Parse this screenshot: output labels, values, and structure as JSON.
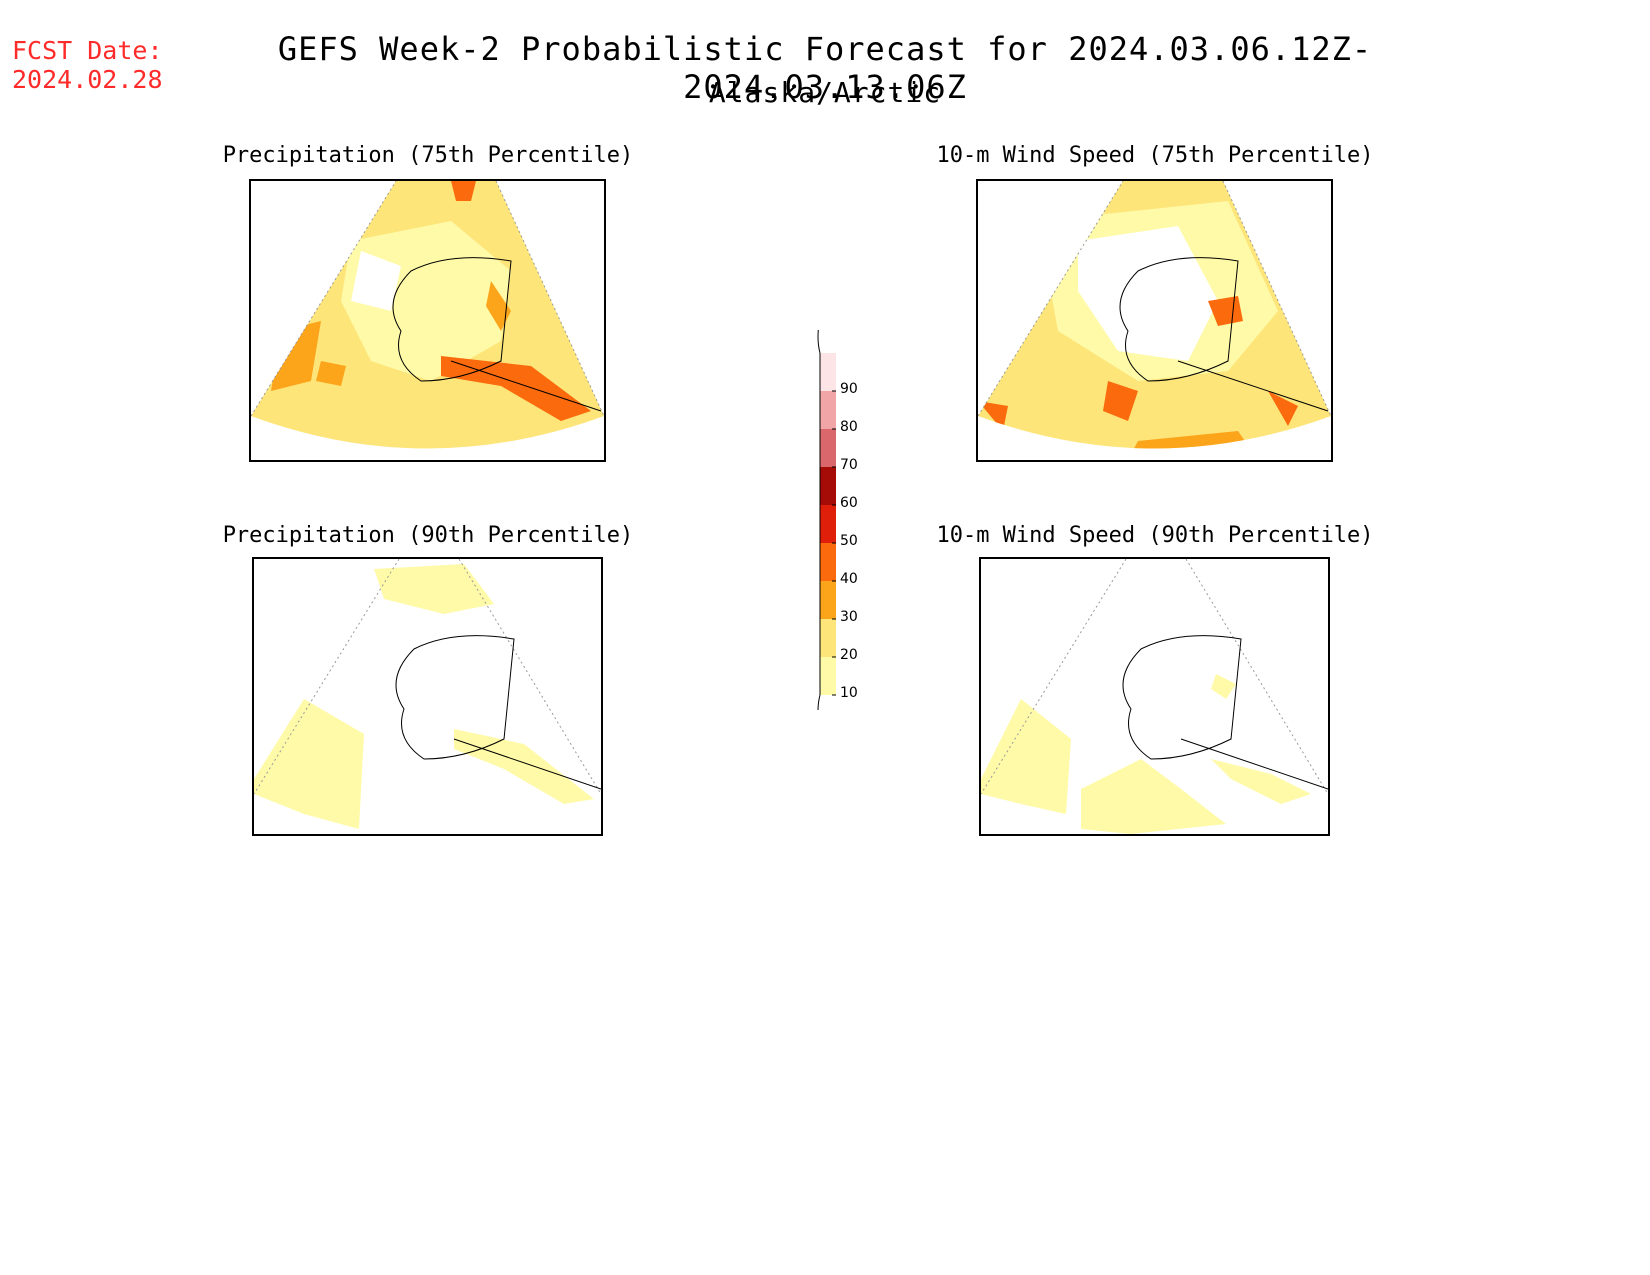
{
  "fcst_label": "FCST Date:",
  "fcst_date": "2024.02.28",
  "title": "GEFS Week-2 Probabilistic Forecast for 2024.03.06.12Z-2024.03.13.06Z",
  "subtitle": "Alaska/Arctic",
  "panels": [
    {
      "title": "Precipitation (75th Percentile)"
    },
    {
      "title": "10-m Wind Speed (75th Percentile)"
    },
    {
      "title": "Precipitation (90th Percentile)"
    },
    {
      "title": "10-m Wind Speed (90th Percentile)"
    }
  ],
  "colorbar": {
    "levels": [
      "10",
      "20",
      "30",
      "40",
      "50",
      "60",
      "70",
      "80",
      "90"
    ],
    "colors": [
      "#fffaa8",
      "#fde57a",
      "#fca41a",
      "#fb6a0c",
      "#e01f0a",
      "#a50b07",
      "#d9676b",
      "#f2a5a7",
      "#fde4e6"
    ]
  }
}
